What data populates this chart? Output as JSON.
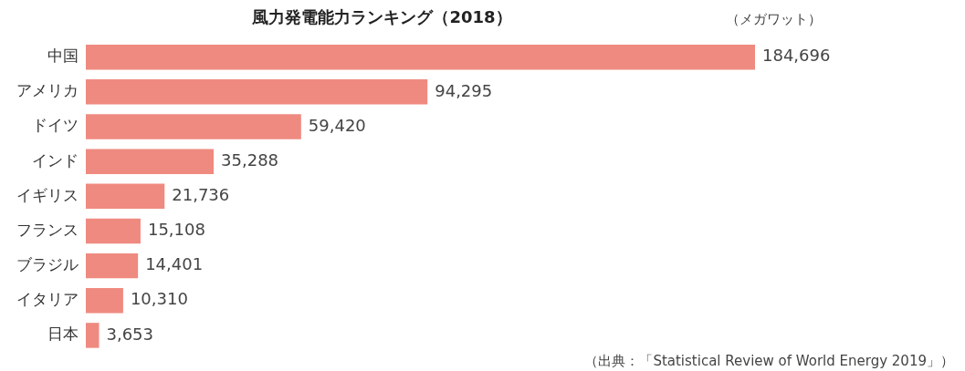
{
  "chart_data": {
    "type": "bar",
    "orientation": "horizontal",
    "title": "風力発電能力ランキング（2018）",
    "categories": [
      "中国",
      "アメリカ",
      "ドイツ",
      "インド",
      "イギリス",
      "フランス",
      "ブラジル",
      "イタリア",
      "日本"
    ],
    "values": [
      184696,
      94295,
      59420,
      35288,
      21736,
      15108,
      14401,
      10310,
      3653
    ],
    "value_labels": [
      "184,696",
      "94,295",
      "59,420",
      "35,288",
      "21,736",
      "15,108",
      "14,401",
      "10,310",
      "3,653"
    ],
    "color": "#ef8a80",
    "grid": false,
    "legend": false,
    "tick_labels": "y",
    "annotations": [
      "（メガワット）",
      "（出典：「Statistical Review of World Energy 2019」）"
    ]
  }
}
